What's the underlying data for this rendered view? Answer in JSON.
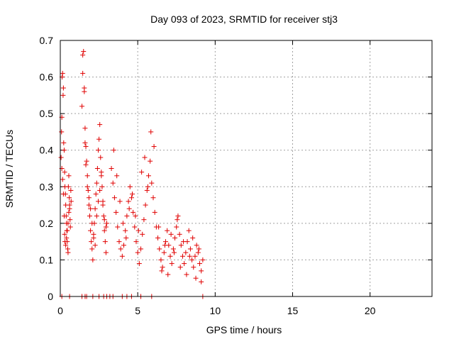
{
  "chart_data": {
    "type": "scatter",
    "title": "Day 093 of 2023, SRMTID for receiver stj3",
    "xlabel": "GPS time / hours",
    "ylabel": "SRMTID / TECUs",
    "xlim": [
      0,
      24
    ],
    "ylim": [
      0,
      0.7
    ],
    "xticks": [
      0,
      5,
      10,
      15,
      20
    ],
    "xtick_labels": [
      "0",
      "5",
      "10",
      "15",
      "20"
    ],
    "yticks": [
      0,
      0.1,
      0.2,
      0.3,
      0.4,
      0.5,
      0.6,
      0.7
    ],
    "ytick_labels": [
      "0",
      "0.1",
      "0.2",
      "0.3",
      "0.4",
      "0.5",
      "0.6",
      "0.7"
    ],
    "grid": true,
    "marker": "+",
    "series": [
      {
        "name": "SRMTID",
        "color": "#e00000",
        "x": [
          0.05,
          0.08,
          0.1,
          0.12,
          0.15,
          0.18,
          0.2,
          0.22,
          0.25,
          0.28,
          0.3,
          0.33,
          0.35,
          0.38,
          0.4,
          0.42,
          0.45,
          0.48,
          0.5,
          0.52,
          0.55,
          0.58,
          0.6,
          0.63,
          0.65,
          0.68,
          0.7,
          0.1,
          0.15,
          0.2,
          0.25,
          0.28,
          0.3,
          0.35,
          0.4,
          0.45,
          0.5,
          0.55,
          0.6,
          1.4,
          1.45,
          1.5,
          1.55,
          1.6,
          1.65,
          1.7,
          1.75,
          1.8,
          1.85,
          1.9,
          1.95,
          2.0,
          2.05,
          2.1,
          2.15,
          2.2,
          2.25,
          2.3,
          2.35,
          2.4,
          2.45,
          2.5,
          2.55,
          2.6,
          2.65,
          2.7,
          2.75,
          2.8,
          2.85,
          2.9,
          2.95,
          3.0,
          1.45,
          1.55,
          1.6,
          1.65,
          1.75,
          1.85,
          1.95,
          2.05,
          2.15,
          2.25,
          2.35,
          2.45,
          2.55,
          2.65,
          2.75,
          2.85,
          2.95,
          3.3,
          3.4,
          3.5,
          3.6,
          3.7,
          3.8,
          3.9,
          4.0,
          4.1,
          4.2,
          4.3,
          4.4,
          4.5,
          4.6,
          4.7,
          4.8,
          4.9,
          5.0,
          5.1,
          5.2,
          5.3,
          5.4,
          5.5,
          5.6,
          5.7,
          5.8,
          5.9,
          6.0,
          6.1,
          6.2,
          3.45,
          3.65,
          3.85,
          4.05,
          4.25,
          4.45,
          4.65,
          4.85,
          5.05,
          5.25,
          5.45,
          5.65,
          5.85,
          6.05,
          6.3,
          6.4,
          6.5,
          6.6,
          6.7,
          6.8,
          6.9,
          7.0,
          7.1,
          7.2,
          7.3,
          7.4,
          7.5,
          7.6,
          7.7,
          7.8,
          7.9,
          8.0,
          8.1,
          8.2,
          8.3,
          8.4,
          8.5,
          8.6,
          8.7,
          8.8,
          8.9,
          9.0,
          9.1,
          9.2,
          6.35,
          6.55,
          6.75,
          6.95,
          7.15,
          7.35,
          7.55,
          7.75,
          7.95,
          8.15,
          8.35,
          8.55,
          8.75,
          8.95,
          9.1,
          0.1,
          0.6,
          1.4,
          1.6,
          1.7,
          2.1,
          2.5,
          2.8,
          3.0,
          3.2,
          3.4,
          4.0,
          4.3,
          4.6,
          5.2,
          5.9,
          9.2
        ],
        "y": [
          0.38,
          0.45,
          0.49,
          0.6,
          0.61,
          0.55,
          0.57,
          0.42,
          0.4,
          0.34,
          0.3,
          0.28,
          0.25,
          0.22,
          0.2,
          0.18,
          0.15,
          0.13,
          0.12,
          0.3,
          0.33,
          0.27,
          0.24,
          0.21,
          0.19,
          0.29,
          0.26,
          0.35,
          0.32,
          0.28,
          0.22,
          0.17,
          0.15,
          0.14,
          0.16,
          0.18,
          0.2,
          0.23,
          0.25,
          0.52,
          0.61,
          0.67,
          0.57,
          0.46,
          0.41,
          0.37,
          0.33,
          0.29,
          0.25,
          0.22,
          0.18,
          0.15,
          0.13,
          0.1,
          0.16,
          0.2,
          0.24,
          0.28,
          0.31,
          0.35,
          0.4,
          0.43,
          0.47,
          0.38,
          0.34,
          0.3,
          0.26,
          0.22,
          0.18,
          0.15,
          0.12,
          0.2,
          0.66,
          0.56,
          0.42,
          0.36,
          0.3,
          0.27,
          0.24,
          0.2,
          0.17,
          0.14,
          0.22,
          0.26,
          0.29,
          0.33,
          0.25,
          0.21,
          0.19,
          0.35,
          0.31,
          0.27,
          0.23,
          0.19,
          0.15,
          0.13,
          0.11,
          0.14,
          0.18,
          0.22,
          0.26,
          0.3,
          0.27,
          0.23,
          0.19,
          0.15,
          0.12,
          0.09,
          0.13,
          0.17,
          0.21,
          0.25,
          0.29,
          0.33,
          0.37,
          0.31,
          0.27,
          0.23,
          0.19,
          0.4,
          0.33,
          0.26,
          0.2,
          0.16,
          0.24,
          0.28,
          0.22,
          0.18,
          0.34,
          0.38,
          0.3,
          0.45,
          0.41,
          0.16,
          0.13,
          0.1,
          0.08,
          0.12,
          0.15,
          0.18,
          0.14,
          0.11,
          0.09,
          0.13,
          0.16,
          0.19,
          0.22,
          0.17,
          0.14,
          0.11,
          0.09,
          0.12,
          0.15,
          0.18,
          0.13,
          0.1,
          0.08,
          0.11,
          0.14,
          0.12,
          0.09,
          0.07,
          0.1,
          0.19,
          0.07,
          0.14,
          0.06,
          0.17,
          0.12,
          0.21,
          0.08,
          0.15,
          0.06,
          0.11,
          0.16,
          0.05,
          0.13,
          0.04,
          0,
          0,
          0,
          0,
          0,
          0,
          0,
          0,
          0,
          0,
          0,
          0,
          0,
          0,
          0,
          0,
          0
        ]
      }
    ]
  }
}
